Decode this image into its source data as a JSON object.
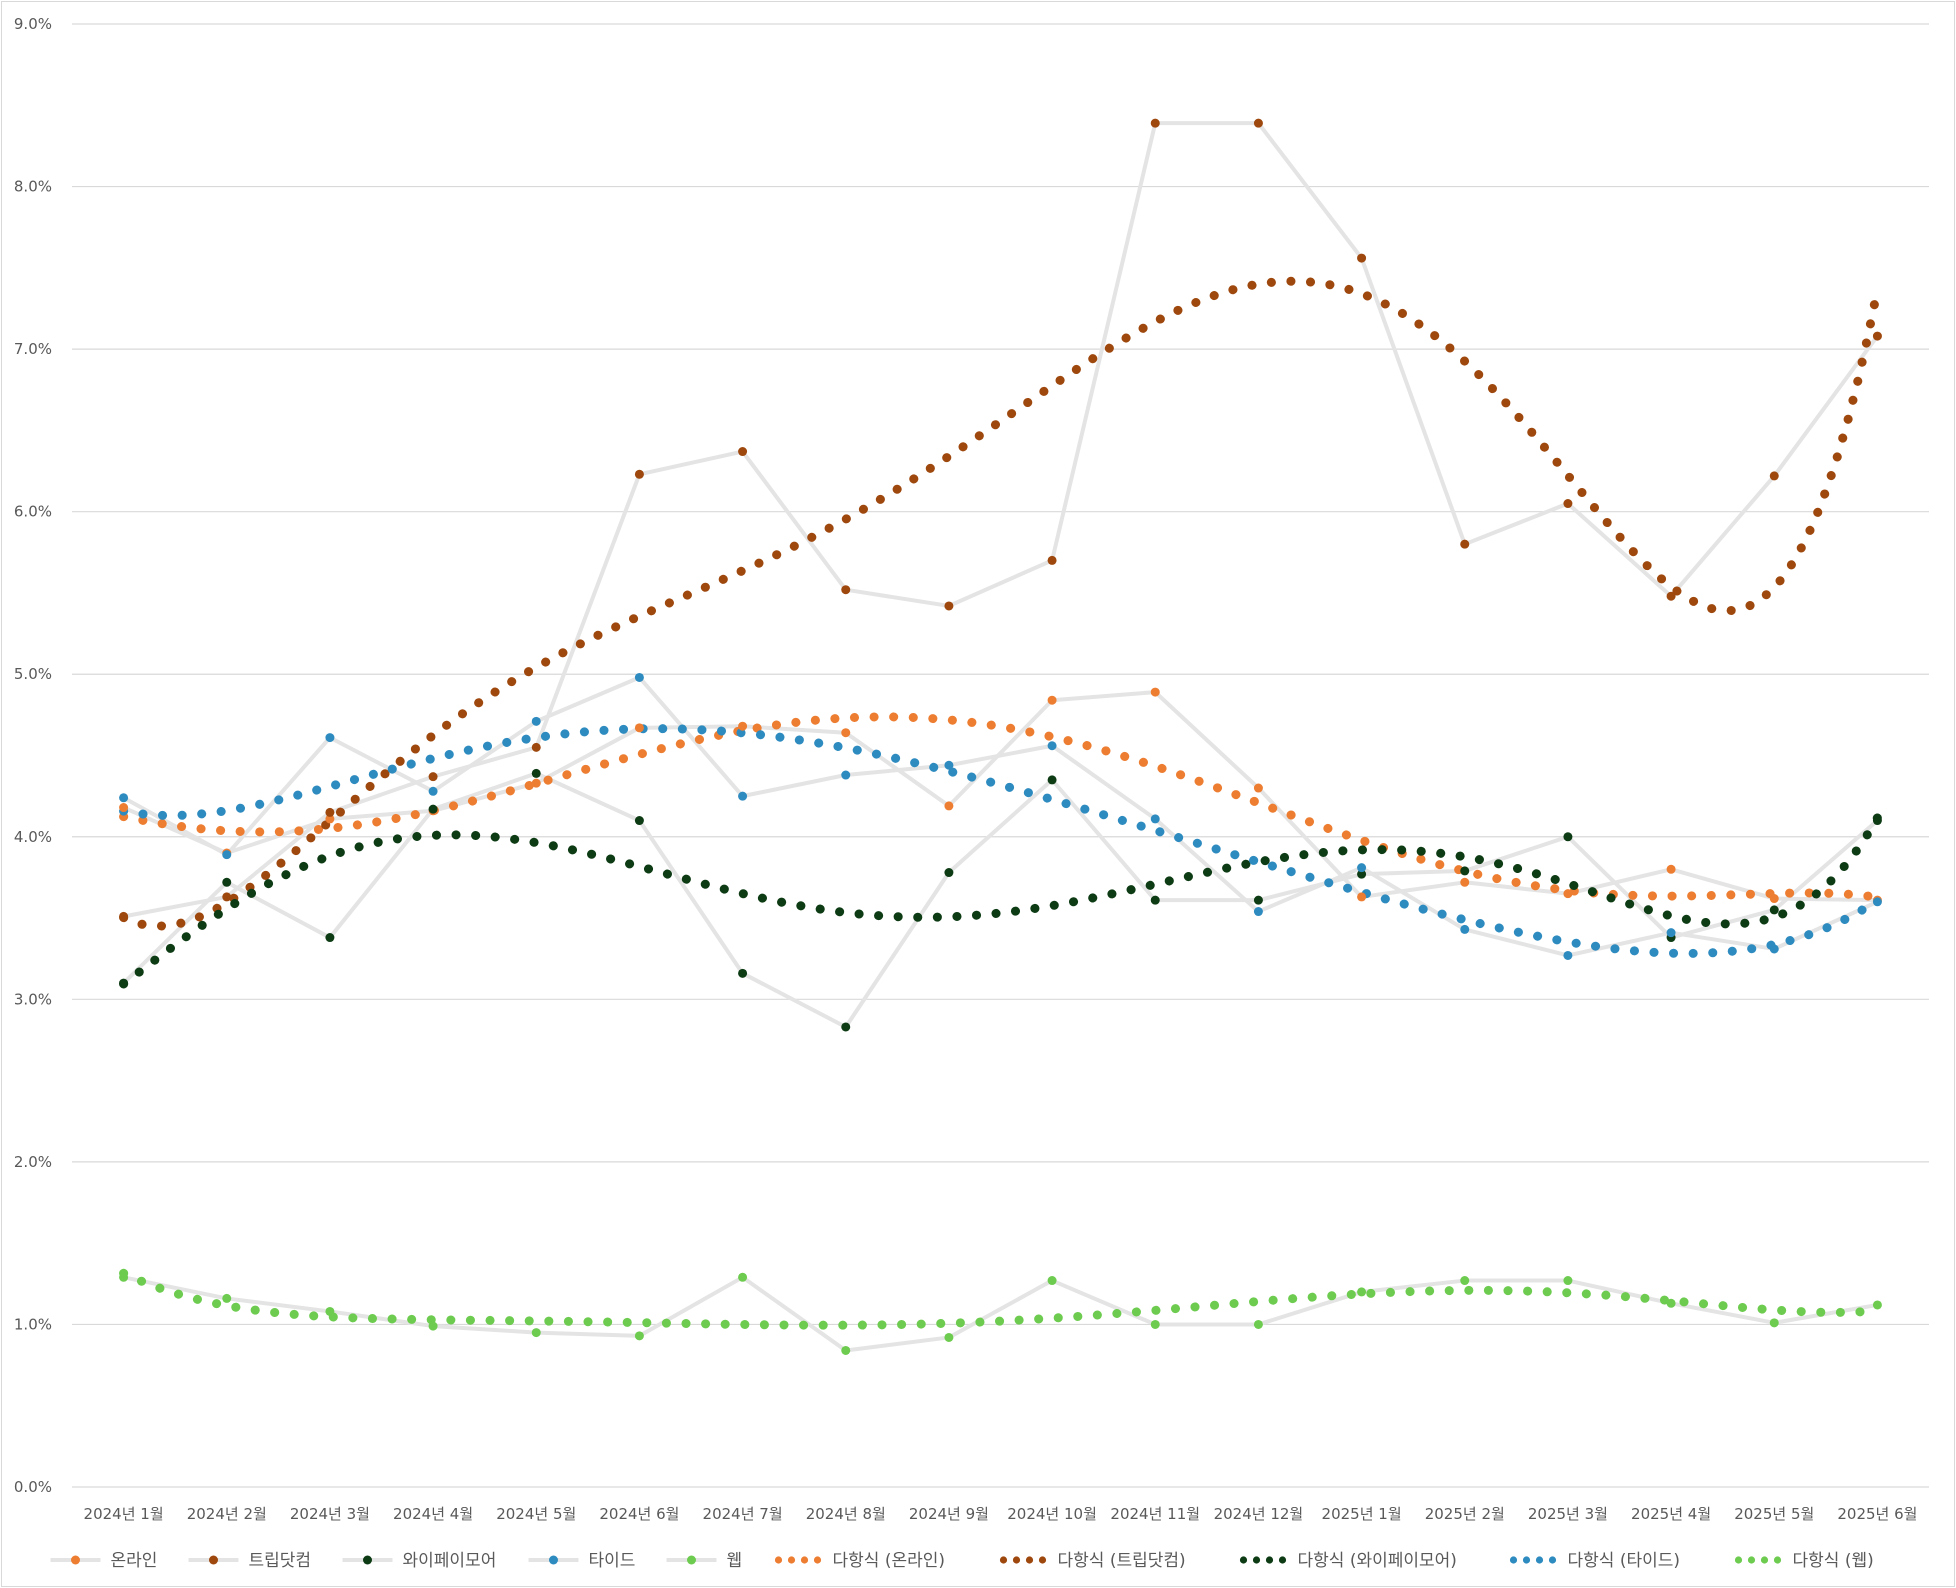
{
  "chart_data": {
    "type": "line",
    "title": "",
    "xlabel": "",
    "ylabel": "",
    "ylim": [
      0,
      9
    ],
    "y_tick_values": [
      0,
      1,
      2,
      3,
      4,
      5,
      6,
      7,
      8,
      9
    ],
    "y_tick_labels": [
      "0.0%",
      "1.0%",
      "2.0%",
      "3.0%",
      "4.0%",
      "5.0%",
      "6.0%",
      "7.0%",
      "8.0%",
      "9.0%"
    ],
    "grid": true,
    "legend_position": "bottom",
    "categories": [
      "2024년 1월",
      "2024년 2월",
      "2024년 3월",
      "2024년 4월",
      "2024년 5월",
      "2024년 6월",
      "2024년 7월",
      "2024년 8월",
      "2024년 9월",
      "2024년 10월",
      "2024년 11월",
      "2024년 12월",
      "2025년 1월",
      "2025년 2월",
      "2025년 3월",
      "2025년 4월",
      "2025년 5월",
      "2025년 6월"
    ],
    "series": [
      {
        "name": "온라인",
        "color": "#ed7d31",
        "values": [
          4.18,
          3.9,
          4.11,
          4.16,
          4.33,
          4.67,
          4.68,
          4.64,
          4.19,
          4.84,
          4.89,
          4.3,
          3.63,
          3.72,
          3.65,
          3.8,
          3.62,
          3.61
        ]
      },
      {
        "name": "트립닷컴",
        "color": "#9e480e",
        "values": [
          3.51,
          3.63,
          4.15,
          4.37,
          4.55,
          6.23,
          6.37,
          5.52,
          5.42,
          5.7,
          8.39,
          8.39,
          7.56,
          5.8,
          6.05,
          5.48,
          6.22,
          7.08
        ]
      },
      {
        "name": "와이페이모어",
        "color": "#0d3b14",
        "values": [
          3.1,
          3.72,
          3.38,
          4.17,
          4.39,
          4.1,
          3.16,
          2.83,
          3.78,
          4.35,
          3.61,
          3.61,
          3.77,
          3.79,
          4.0,
          3.38,
          3.55,
          4.1
        ]
      },
      {
        "name": "타이드",
        "color": "#2e8bc0",
        "values": [
          4.24,
          3.89,
          4.61,
          4.28,
          4.71,
          4.98,
          4.25,
          4.38,
          4.44,
          4.56,
          4.11,
          3.54,
          3.81,
          3.43,
          3.27,
          3.41,
          3.31,
          3.6
        ]
      },
      {
        "name": "웹",
        "color": "#6dcc4f",
        "values": [
          1.29,
          1.16,
          1.08,
          0.99,
          0.95,
          0.93,
          1.29,
          0.84,
          0.92,
          1.27,
          1.0,
          1.0,
          1.2,
          1.27,
          1.27,
          1.13,
          1.01,
          1.12
        ]
      }
    ],
    "trend_series": [
      {
        "name": "다항식 (온라인)",
        "color": "#ed7d31"
      },
      {
        "name": "다항식 (트립닷컴)",
        "color": "#9e480e"
      },
      {
        "name": "다항식 (와이페이모어)",
        "color": "#0d3b14"
      },
      {
        "name": "다항식 (타이드)",
        "color": "#2e8bc0"
      },
      {
        "name": "다항식 (웹)",
        "color": "#6dcc4f"
      }
    ]
  }
}
